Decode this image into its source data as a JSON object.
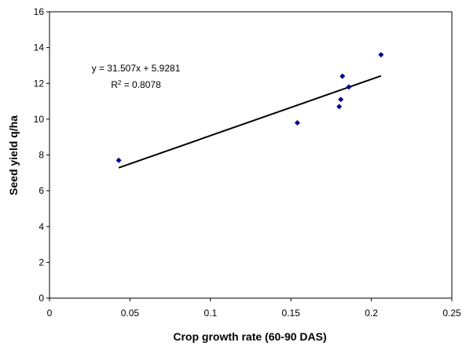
{
  "chart_data": {
    "type": "scatter",
    "xlabel": "Crop growth rate (60-90 DAS)",
    "ylabel": "Seed yield q/ha",
    "xlim": [
      0,
      0.25
    ],
    "ylim": [
      0,
      16
    ],
    "x_ticks": [
      0,
      0.05,
      0.1,
      0.15,
      0.2,
      0.25
    ],
    "x_tick_labels": [
      "0",
      "0.05",
      "0.1",
      "0.15",
      "0.2",
      "0.25"
    ],
    "y_ticks": [
      0,
      2,
      4,
      6,
      8,
      10,
      12,
      14,
      16
    ],
    "y_tick_labels": [
      "0",
      "2",
      "4",
      "6",
      "8",
      "10",
      "12",
      "14",
      "16"
    ],
    "grid": false,
    "series": [
      {
        "color": "#00008B",
        "points": [
          {
            "x": 0.043,
            "y": 7.7
          },
          {
            "x": 0.154,
            "y": 9.8
          },
          {
            "x": 0.18,
            "y": 10.7
          },
          {
            "x": 0.181,
            "y": 11.1
          },
          {
            "x": 0.182,
            "y": 12.4
          },
          {
            "x": 0.186,
            "y": 11.8
          },
          {
            "x": 0.206,
            "y": 13.6
          }
        ]
      }
    ],
    "trendline": {
      "type": "linear",
      "slope": 31.507,
      "intercept": 5.9281,
      "x_range": [
        0.043,
        0.206
      ],
      "color": "#000000"
    },
    "annotations": {
      "equation": "y = 31.507x + 5.9281",
      "r2_prefix": "R",
      "r2_exponent": "2",
      "r2_value": " = 0.8078"
    }
  }
}
